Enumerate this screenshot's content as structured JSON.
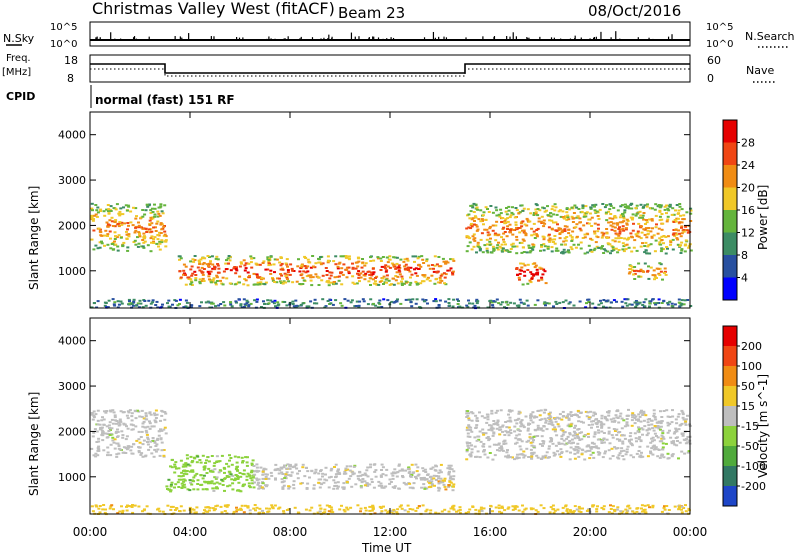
{
  "header": {
    "title": "Christmas Valley West (fitACF)",
    "beam": "Beam 23",
    "date": "08/Oct/2016"
  },
  "status": {
    "nsky_label": "N.Sky",
    "nsky_ticks": [
      "10^5",
      "10^0"
    ],
    "nsearch_label": "N.Search",
    "nsearch_ticks": [
      "10^5",
      "10^0"
    ],
    "freq_label": "Freq.",
    "freq_unit": "[MHz]",
    "freq_ticks": [
      "18",
      "8"
    ],
    "nave_label": "Nave",
    "nave_ticks": [
      "60",
      "0"
    ],
    "cpid_label": "CPID",
    "cpid_text": "normal (fast) 151 RF"
  },
  "chart_data": [
    {
      "type": "heatmap",
      "name": "power",
      "ylabel": "Slant Range [km]",
      "yticks": [
        "4000",
        "3000",
        "2000",
        "1000"
      ],
      "ylim": [
        180,
        4500
      ],
      "xlim": [
        0,
        24
      ],
      "colorbar_label": "Power [dB]",
      "colorbar_ticks": [
        "28",
        "24",
        "20",
        "16",
        "12",
        "8",
        "4"
      ],
      "colors": [
        "#0000ff",
        "#2850a0",
        "#3c8c64",
        "#64b43c",
        "#f0c828",
        "#f08c14",
        "#f04614",
        "#e60000"
      ],
      "features": [
        {
          "t0": 0.0,
          "t1": 3.0,
          "r0": 1450,
          "r1": 2500,
          "level": 5
        },
        {
          "t0": 3.5,
          "t1": 14.5,
          "r0": 700,
          "r1": 1350,
          "level": 6
        },
        {
          "t0": 15.0,
          "t1": 24.0,
          "r0": 1400,
          "r1": 2500,
          "level": 5
        },
        {
          "t0": 17.0,
          "t1": 18.2,
          "r0": 700,
          "r1": 1200,
          "level": 7
        },
        {
          "t0": 21.5,
          "t1": 23.0,
          "r0": 800,
          "r1": 1200,
          "level": 5
        },
        {
          "t0": 0.0,
          "t1": 24.0,
          "r0": 200,
          "r1": 400,
          "level": 2
        }
      ]
    },
    {
      "type": "heatmap",
      "name": "velocity",
      "ylabel": "Slant Range [km]",
      "yticks": [
        "4000",
        "3000",
        "2000",
        "1000"
      ],
      "ylim": [
        180,
        4500
      ],
      "xlim": [
        0,
        24
      ],
      "xticks": [
        "00:00",
        "04:00",
        "08:00",
        "12:00",
        "16:00",
        "20:00",
        "00:00"
      ],
      "xlabel": "Time UT",
      "colorbar_label": "Velocity [m s^-1]",
      "colorbar_ticks": [
        "200",
        "100",
        "50",
        "15",
        "-15",
        "-50",
        "-100",
        "-200"
      ],
      "colors": [
        "#1e46c8",
        "#327864",
        "#50aa3c",
        "#8cd23c",
        "#bebebe",
        "#f0c828",
        "#f08c14",
        "#f04614",
        "#e60000"
      ],
      "features": [
        {
          "t0": 0.0,
          "t1": 3.0,
          "r0": 1450,
          "r1": 2500,
          "color_index": 4
        },
        {
          "t0": 3.0,
          "t1": 6.5,
          "r0": 700,
          "r1": 1500,
          "color_index": 3
        },
        {
          "t0": 6.5,
          "t1": 14.5,
          "r0": 750,
          "r1": 1300,
          "color_index": 4
        },
        {
          "t0": 13.5,
          "t1": 14.5,
          "r0": 700,
          "r1": 1000,
          "color_index": 5
        },
        {
          "t0": 15.0,
          "t1": 24.0,
          "r0": 1400,
          "r1": 2500,
          "color_index": 4
        },
        {
          "t0": 0.0,
          "t1": 24.0,
          "r0": 200,
          "r1": 400,
          "color_index": 5
        }
      ]
    }
  ]
}
